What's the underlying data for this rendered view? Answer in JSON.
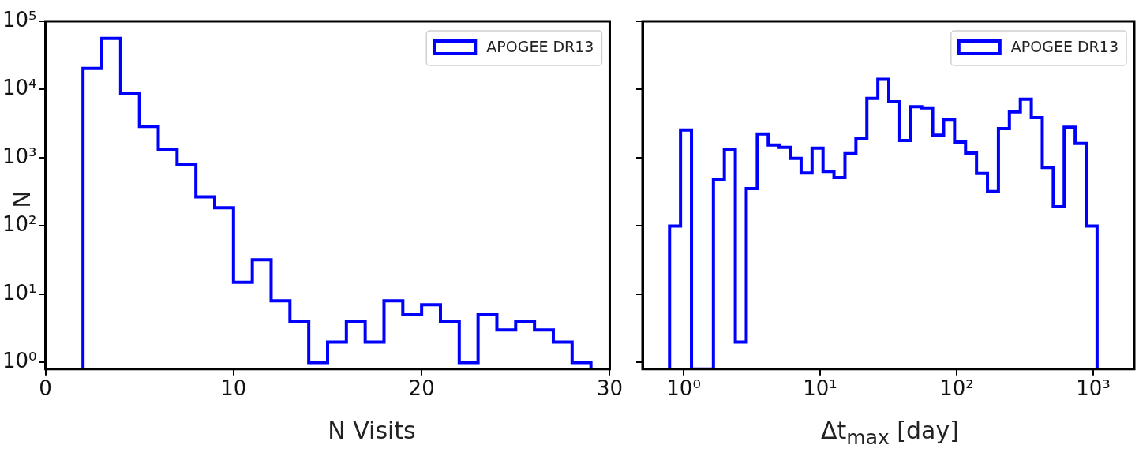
{
  "chart_data": [
    {
      "type": "histogram",
      "xlabel": "N Visits",
      "ylabel": "N",
      "log": "y",
      "grid": false,
      "legend": "top right",
      "bins": [
        2,
        3,
        4,
        5,
        6,
        7,
        8,
        9,
        10,
        11,
        12,
        13,
        14,
        15,
        16,
        17,
        18,
        19,
        20,
        21,
        22,
        23,
        24,
        25,
        26,
        27,
        28,
        29
      ],
      "series": [
        {
          "name": "APOGEE DR13",
          "color": "#0000ff",
          "values": [
            20400,
            56000,
            8700,
            2870,
            1320,
            800,
            267,
            186,
            15,
            32,
            8,
            4,
            1,
            2,
            4,
            2,
            8,
            5,
            7,
            4,
            1,
            5,
            3,
            4,
            3,
            2,
            1
          ]
        }
      ],
      "xlim": [
        0,
        30
      ],
      "xticks": [
        0,
        10,
        20,
        30
      ],
      "ylim": [
        0.8,
        100000
      ],
      "yticks": [
        {
          "value": 1,
          "label": "10⁰"
        },
        {
          "value": 10,
          "label": "10¹"
        },
        {
          "value": 100,
          "label": "10²"
        },
        {
          "value": 1000,
          "label": "10³"
        },
        {
          "value": 10000,
          "label": "10⁴"
        },
        {
          "value": 100000,
          "label": "10⁵"
        }
      ]
    },
    {
      "type": "histogram",
      "xlabel": "Δt$_{max}$ [day]",
      "log": "xy",
      "grid": false,
      "legend": "top right",
      "tick_labels": "x",
      "bins": [
        0.789,
        0.949,
        1.142,
        1.374,
        1.653,
        1.988,
        2.392,
        2.878,
        3.463,
        4.166,
        5.012,
        6.03,
        7.255,
        8.728,
        10.5,
        12.63,
        15.2,
        18.29,
        22,
        26.47,
        31.84,
        38.31,
        46.09,
        55.45,
        66.71,
        80.26,
        96.56,
        116.2,
        139.8,
        168.2,
        202.3,
        243.4,
        292.9,
        352.4,
        423.9,
        510,
        613.6,
        738.2,
        888.1,
        1068
      ],
      "series": [
        {
          "name": "APOGEE DR13",
          "color": "#0000ff",
          "values": [
            100,
            2560,
            null,
            null,
            486,
            1310,
            2,
            353,
            2240,
            1540,
            1420,
            980,
            600,
            1380,
            630,
            515,
            1150,
            1900,
            7400,
            14100,
            6600,
            1800,
            5600,
            5400,
            2150,
            3650,
            1700,
            1170,
            590,
            320,
            2680,
            4700,
            7200,
            3880,
            720,
            192,
            2800,
            1620,
            100
          ]
        }
      ],
      "xlim": [
        0.5,
        2000
      ],
      "xticks": [
        {
          "value": 1,
          "label": "10⁰"
        },
        {
          "value": 10,
          "label": "10¹"
        },
        {
          "value": 100,
          "label": "10²"
        },
        {
          "value": 1000,
          "label": "10³"
        }
      ],
      "ylim": [
        0.8,
        100000
      ],
      "yticks": [
        {
          "value": 1,
          "label": null
        },
        {
          "value": 10,
          "label": null
        },
        {
          "value": 100,
          "label": null
        },
        {
          "value": 1000,
          "label": null
        },
        {
          "value": 10000,
          "label": null
        },
        {
          "value": 100000,
          "label": null
        }
      ]
    }
  ]
}
